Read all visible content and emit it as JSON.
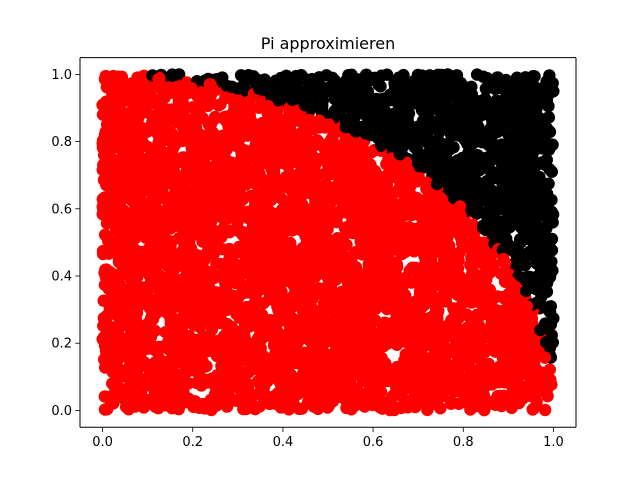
{
  "chart_data": {
    "type": "scatter",
    "title": "Pi approximieren",
    "xlabel": "",
    "ylabel": "",
    "xlim": [
      -0.05,
      1.05
    ],
    "ylim": [
      -0.05,
      1.05
    ],
    "x_ticks": [
      0.0,
      0.2,
      0.4,
      0.6,
      0.8,
      1.0
    ],
    "x_tick_labels": [
      "0.0",
      "0.2",
      "0.4",
      "0.6",
      "0.8",
      "1.0"
    ],
    "y_ticks": [
      0.0,
      0.2,
      0.4,
      0.6,
      0.8,
      1.0
    ],
    "y_tick_labels": [
      "0.0",
      "0.2",
      "0.4",
      "0.6",
      "0.8",
      "1.0"
    ],
    "grid": false,
    "legend": "none",
    "marker": "circle",
    "domain": {
      "x": [
        0,
        1
      ],
      "y": [
        0,
        1
      ]
    },
    "point_count": 5000,
    "series": [
      {
        "color": "#ff0000",
        "rule": "x^2 + y^2 <= 1",
        "region": "inside unit quarter circle"
      },
      {
        "color": "#000000",
        "rule": "x^2 + y^2 > 1",
        "region": "outside unit quarter circle"
      }
    ]
  }
}
